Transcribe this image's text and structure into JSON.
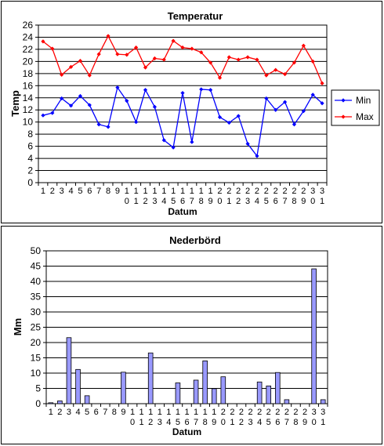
{
  "charts": {
    "temperature": {
      "chart_data": {
        "type": "line",
        "title": "Temperatur",
        "xlabel": "Datum",
        "ylabel": "Temp",
        "ylim": [
          0,
          26
        ],
        "yticks": [
          0,
          2,
          4,
          6,
          8,
          10,
          12,
          14,
          16,
          18,
          20,
          22,
          24,
          26
        ],
        "grid": true,
        "legend_position": "right",
        "x_tick_labels": [
          "1",
          "2",
          "3",
          "4",
          "5",
          "6",
          "7",
          "8",
          "9",
          "10",
          "11",
          "12",
          "13",
          "14",
          "15",
          "16",
          "17",
          "18",
          "19",
          "20",
          "21",
          "22",
          "23",
          "24",
          "25",
          "26",
          "27",
          "28",
          "29",
          "30",
          "31"
        ],
        "series": [
          {
            "name": "Min",
            "color": "#0000ff",
            "marker": "diamond",
            "values": [
              11.1,
              11.5,
              13.9,
              12.7,
              14.3,
              12.8,
              9.6,
              9.2,
              15.7,
              13.5,
              10.0,
              15.3,
              12.5,
              7.0,
              5.8,
              14.8,
              6.7,
              15.4,
              15.3,
              10.8,
              9.9,
              11.0,
              6.4,
              4.4,
              13.9,
              12.0,
              13.3,
              9.6,
              11.8,
              14.5,
              13.1
            ]
          },
          {
            "name": "Max",
            "color": "#ff0000",
            "marker": "diamond",
            "values": [
              23.3,
              22.1,
              17.8,
              19.1,
              20.1,
              17.7,
              21.2,
              24.2,
              21.2,
              21.1,
              22.3,
              19.0,
              20.5,
              20.3,
              23.4,
              22.3,
              22.1,
              21.5,
              19.8,
              17.3,
              20.7,
              20.3,
              20.7,
              20.3,
              17.7,
              18.6,
              17.9,
              19.8,
              22.6,
              20.0,
              16.4
            ]
          }
        ]
      }
    },
    "precipitation": {
      "chart_data": {
        "type": "bar",
        "title": "Nederbörd",
        "xlabel": "Datum",
        "ylabel": "Mm",
        "ylim": [
          0,
          50
        ],
        "yticks": [
          0,
          5,
          10,
          15,
          20,
          25,
          30,
          35,
          40,
          45,
          50
        ],
        "grid": true,
        "bar_color": "#9999ff",
        "x_tick_labels": [
          "1",
          "2",
          "3",
          "4",
          "5",
          "6",
          "7",
          "8",
          "9",
          "10",
          "11",
          "12",
          "13",
          "14",
          "15",
          "16",
          "17",
          "18",
          "19",
          "20",
          "21",
          "22",
          "23",
          "24",
          "25",
          "26",
          "27",
          "28",
          "29",
          "30",
          "31"
        ],
        "series": [
          {
            "values": [
              0.3,
              0.9,
              21.6,
              11.2,
              2.6,
              0,
              0,
              0,
              10.3,
              0,
              0,
              16.6,
              0,
              0,
              6.8,
              0,
              7.7,
              14.0,
              4.9,
              8.8,
              0,
              0,
              0,
              7.1,
              5.8,
              10.2,
              1.3,
              0,
              0,
              44.1,
              1.3
            ]
          }
        ]
      }
    }
  }
}
